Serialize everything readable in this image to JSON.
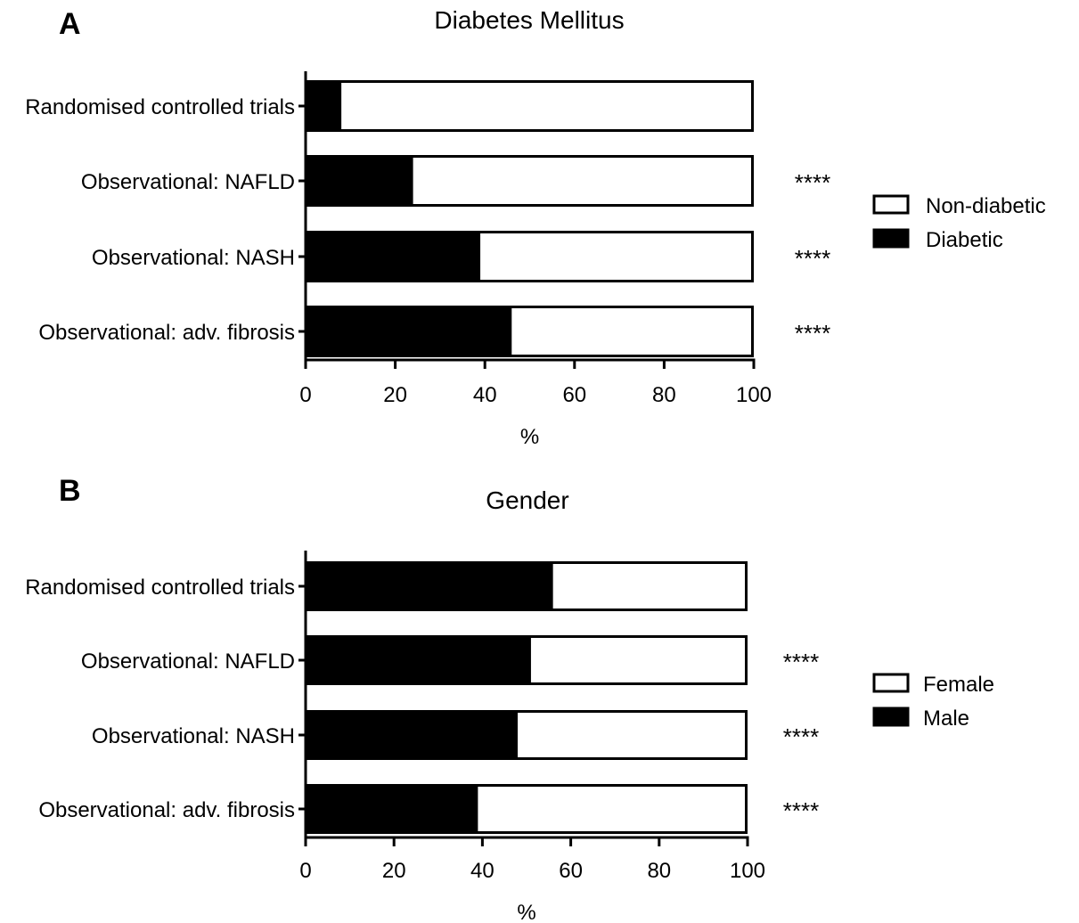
{
  "chart_data": [
    {
      "type": "bar",
      "stacked": true,
      "orientation": "horizontal",
      "panel_letter": "A",
      "title": "Diabetes Mellitus",
      "xlabel": "%",
      "ylabel": "",
      "xlim": [
        0,
        100
      ],
      "xticks": [
        "0",
        "20",
        "40",
        "60",
        "80",
        "100"
      ],
      "categories": [
        "Randomised controlled trials",
        "Observational: NAFLD",
        "Observational: NASH",
        "Observational: adv. fibrosis"
      ],
      "series": [
        {
          "name": "Diabetic",
          "color": "#000000",
          "values": [
            8,
            24,
            39,
            46
          ]
        },
        {
          "name": "Non-diabetic",
          "color": "#ffffff",
          "values": [
            92,
            76,
            61,
            54
          ]
        }
      ],
      "legend": [
        "Non-diabetic",
        "Diabetic"
      ],
      "legend_position": "right",
      "annotations": [
        "",
        "****",
        "****",
        "****"
      ],
      "grid": false
    },
    {
      "type": "bar",
      "stacked": true,
      "orientation": "horizontal",
      "panel_letter": "B",
      "title": "Gender",
      "xlabel": "%",
      "ylabel": "",
      "xlim": [
        0,
        100
      ],
      "xticks": [
        "0",
        "20",
        "40",
        "60",
        "80",
        "100"
      ],
      "categories": [
        "Randomised controlled trials",
        "Observational: NAFLD",
        "Observational: NASH",
        "Observational: adv. fibrosis"
      ],
      "series": [
        {
          "name": "Male",
          "color": "#000000",
          "values": [
            56,
            51,
            48,
            39
          ]
        },
        {
          "name": "Female",
          "color": "#ffffff",
          "values": [
            44,
            49,
            52,
            61
          ]
        }
      ],
      "legend": [
        "Female",
        "Male"
      ],
      "legend_position": "right",
      "annotations": [
        "",
        "****",
        "****",
        "****"
      ],
      "grid": false
    }
  ]
}
